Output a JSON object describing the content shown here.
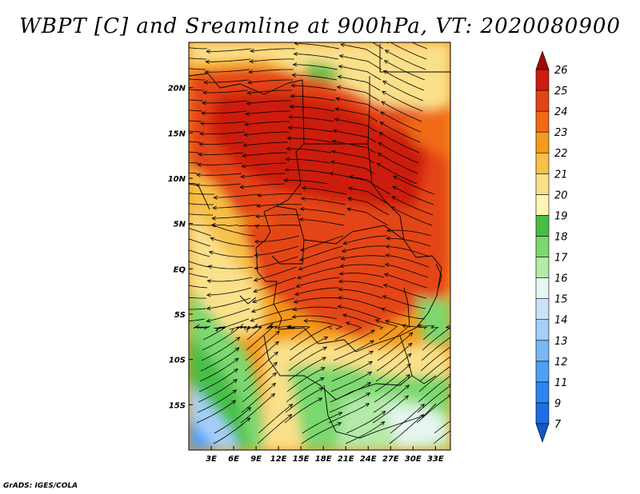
{
  "title": "WBPT [C] and Sreamline at 900hPa, VT: 2020080900",
  "footer": "GrADS: IGES/COLA",
  "map": {
    "lon_range": [
      0,
      35
    ],
    "lat_range": [
      -20,
      25
    ],
    "x_ticks": [
      {
        "value": 3,
        "label": "3E"
      },
      {
        "value": 6,
        "label": "6E"
      },
      {
        "value": 9,
        "label": "9E"
      },
      {
        "value": 12,
        "label": "12E"
      },
      {
        "value": 15,
        "label": "15E"
      },
      {
        "value": 18,
        "label": "18E"
      },
      {
        "value": 21,
        "label": "21E"
      },
      {
        "value": 24,
        "label": "24E"
      },
      {
        "value": 27,
        "label": "27E"
      },
      {
        "value": 30,
        "label": "30E"
      },
      {
        "value": 33,
        "label": "33E"
      }
    ],
    "y_ticks": [
      {
        "value": 20,
        "label": "20N"
      },
      {
        "value": 15,
        "label": "15N"
      },
      {
        "value": 10,
        "label": "10N"
      },
      {
        "value": 5,
        "label": "5N"
      },
      {
        "value": 0,
        "label": "EQ"
      },
      {
        "value": -5,
        "label": "5S"
      },
      {
        "value": -10,
        "label": "10S"
      },
      {
        "value": -15,
        "label": "15S"
      }
    ]
  },
  "colorbar": {
    "levels": [
      "7",
      "9",
      "11",
      "12",
      "13",
      "14",
      "15",
      "16",
      "17",
      "18",
      "19",
      "20",
      "21",
      "22",
      "23",
      "24",
      "25",
      "26"
    ],
    "colors": [
      "#1e6ee0",
      "#2f86f0",
      "#4ea0f5",
      "#78b8f5",
      "#a5cff7",
      "#c9e4fa",
      "#e6f6f0",
      "#b4eaa8",
      "#7cd870",
      "#46be46",
      "#fff5b4",
      "#fbe08a",
      "#f7c048",
      "#f59a1c",
      "#f06a14",
      "#e44414",
      "#cc1c10"
    ]
  }
}
